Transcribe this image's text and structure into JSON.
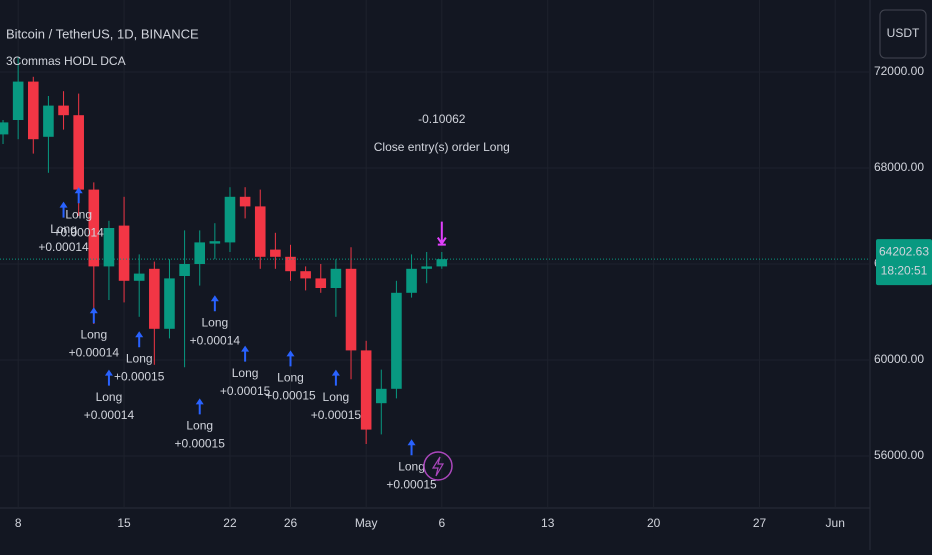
{
  "chart_data": {
    "type": "candlestick",
    "title": "Bitcoin / TetherUS, 1D, BINANCE",
    "indicator": "3Commas HODL DCA",
    "currency": "USDT",
    "up_color": "#089981",
    "down_color": "#f23645",
    "grid": true,
    "x": [
      6,
      7,
      8,
      9,
      10,
      11,
      12,
      13,
      14,
      15,
      16,
      17,
      18,
      19,
      20,
      21,
      22,
      23,
      24,
      25,
      26,
      27,
      28,
      29,
      30,
      31,
      32,
      33,
      34,
      35
    ],
    "open": [
      69400,
      70000,
      71600,
      69300,
      70600,
      70200,
      67100,
      63900,
      65600,
      63300,
      63800,
      61300,
      63500,
      64000,
      64850,
      64900,
      66800,
      66400,
      64600,
      64300,
      63700,
      63400,
      63000,
      63800,
      60400,
      58200,
      58800,
      62800,
      63800,
      63900
    ],
    "high": [
      70000,
      72600,
      71800,
      71000,
      71200,
      71100,
      67400,
      65800,
      66800,
      64400,
      64100,
      64200,
      65400,
      65400,
      65700,
      67200,
      67200,
      67100,
      65300,
      64800,
      63900,
      64000,
      64200,
      64700,
      60800,
      59600,
      63300,
      64400,
      64500,
      64500
    ],
    "low": [
      69000,
      69200,
      68600,
      67800,
      69600,
      66000,
      61500,
      62500,
      62400,
      61800,
      59800,
      60900,
      59700,
      63100,
      64200,
      64500,
      65900,
      63800,
      63800,
      63300,
      62900,
      62800,
      61800,
      59200,
      56500,
      56900,
      58400,
      62600,
      63200,
      63800
    ],
    "close": [
      69900,
      71600,
      69200,
      70600,
      70200,
      67100,
      63900,
      65500,
      63300,
      63600,
      61300,
      63400,
      64000,
      64900,
      64950,
      66800,
      66400,
      64300,
      64300,
      63700,
      63400,
      63000,
      63800,
      60400,
      57100,
      58800,
      62800,
      63800,
      63900,
      64202.63
    ],
    "last_price": {
      "value": 64202.63,
      "label": "64202.63"
    },
    "countdown": "18:20:51",
    "signals": [
      {
        "x": 10,
        "y": 66600,
        "label": "Long",
        "qty": "+0.00014"
      },
      {
        "x": 11,
        "y": 67200,
        "label": "Long",
        "qty": "+0.00014"
      },
      {
        "x": 12,
        "y": 62200,
        "label": "Long",
        "qty": "+0.00014"
      },
      {
        "x": 13,
        "y": 59600,
        "label": "Long",
        "qty": "+0.00014"
      },
      {
        "x": 15,
        "y": 61200,
        "label": "Long",
        "qty": "+0.00015"
      },
      {
        "x": 19,
        "y": 58400,
        "label": "Long",
        "qty": "+0.00015"
      },
      {
        "x": 20,
        "y": 62700,
        "label": "Long",
        "qty": "+0.00014"
      },
      {
        "x": 22,
        "y": 60600,
        "label": "Long",
        "qty": "+0.00015"
      },
      {
        "x": 25,
        "y": 60400,
        "label": "Long",
        "qty": "+0.00015"
      },
      {
        "x": 28,
        "y": 59600,
        "label": "Long",
        "qty": "+0.00015"
      },
      {
        "x": 33,
        "y": 56700,
        "label": "Long",
        "qty": "+0.00015"
      }
    ],
    "close_order": {
      "x": 35,
      "y": 64600,
      "pnl": "-0.10062",
      "label": "Close entry(s) order Long"
    },
    "xlim": [
      5.8,
      63.3
    ],
    "ylim": [
      54000,
      75000
    ],
    "xticks": [
      {
        "value": 7,
        "label": "8"
      },
      {
        "value": 14,
        "label": "15"
      },
      {
        "value": 21,
        "label": "22"
      },
      {
        "value": 25,
        "label": "26"
      },
      {
        "value": 30,
        "label": "May"
      },
      {
        "value": 35,
        "label": "6"
      },
      {
        "value": 42,
        "label": "13"
      },
      {
        "value": 49,
        "label": "20"
      },
      {
        "value": 56,
        "label": "27"
      },
      {
        "value": 61,
        "label": "Jun"
      }
    ],
    "yticks": [
      {
        "value": 56000,
        "label": "56000.00"
      },
      {
        "value": 60000,
        "label": "60000.00"
      },
      {
        "value": 64000,
        "label": "64000.00"
      },
      {
        "value": 68000,
        "label": "68000.00"
      },
      {
        "value": 72000,
        "label": "72000.00"
      }
    ]
  }
}
